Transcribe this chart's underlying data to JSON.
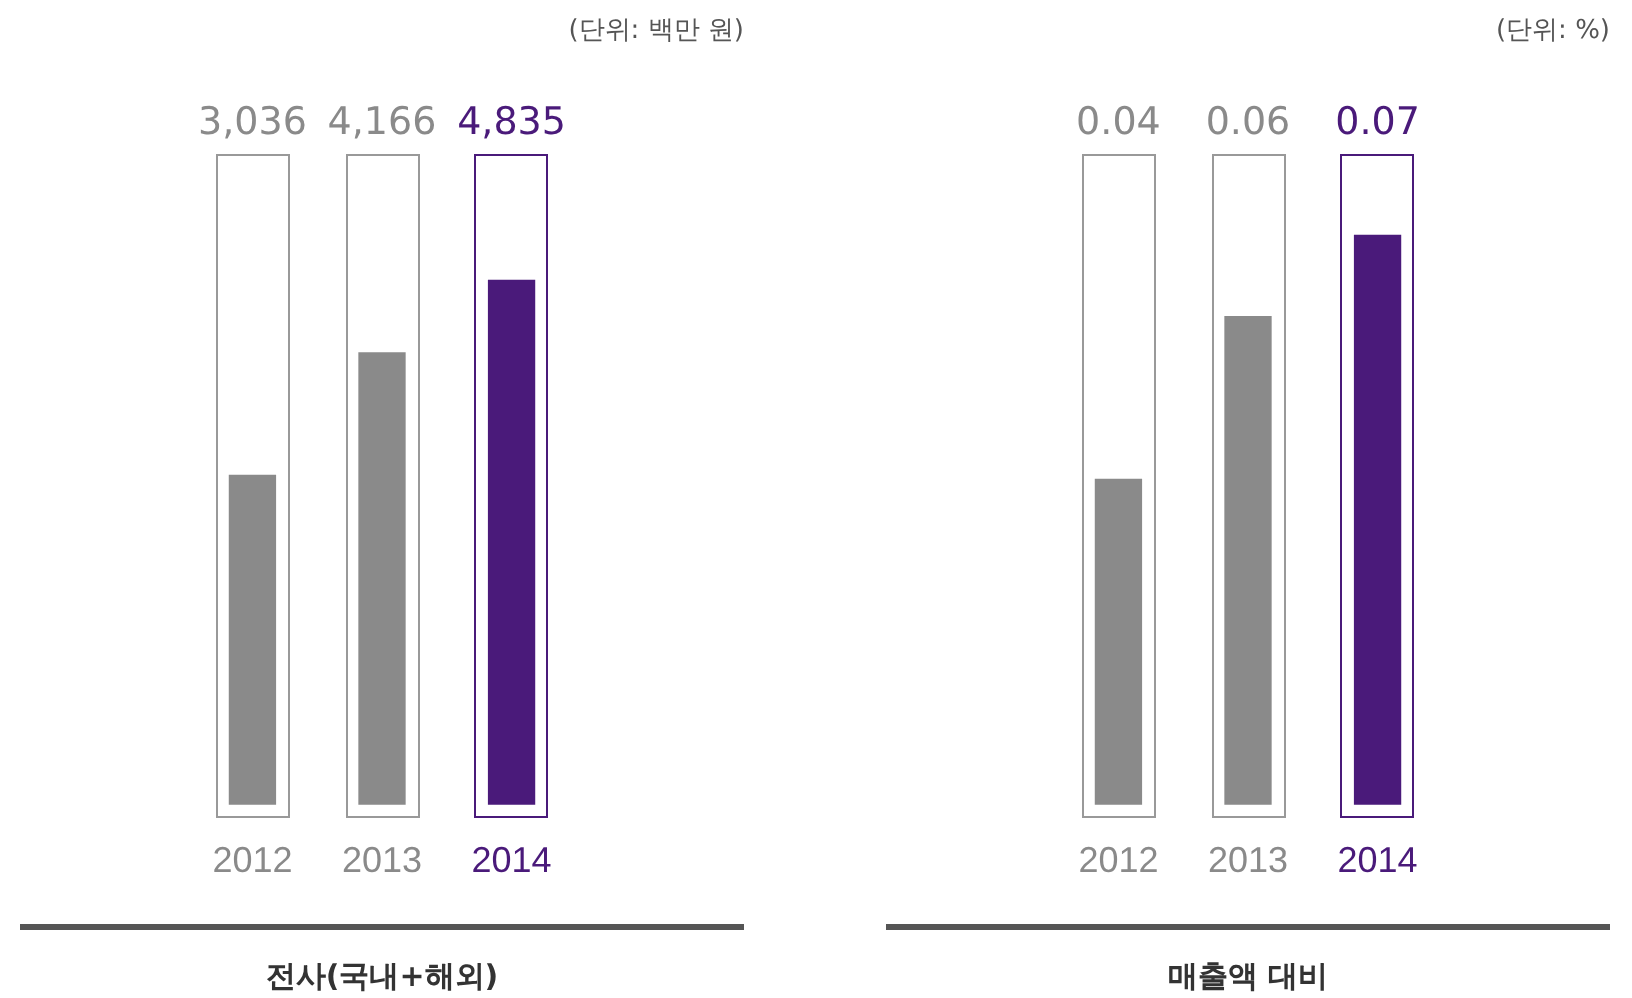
{
  "chart_data": [
    {
      "type": "bar",
      "categories": [
        "2012",
        "2013",
        "2014"
      ],
      "values": [
        3036,
        4166,
        4835
      ],
      "value_labels": [
        "3,036",
        "4,166",
        "4,835"
      ],
      "colors": [
        "#8a8a8a",
        "#8a8a8a",
        "#4a1a7a"
      ],
      "xlabel": "전사(국내+해외)",
      "annotations": [
        "(단위: 백만 원)"
      ],
      "grid": false,
      "legend": false,
      "tick_labels": "x"
    },
    {
      "type": "bar",
      "categories": [
        "2012",
        "2013",
        "2014"
      ],
      "values": [
        0.04,
        0.06,
        0.07
      ],
      "colors": [
        "#8a8a8a",
        "#8a8a8a",
        "#4a1a7a"
      ],
      "data_labels": true,
      "xlabel": "매출액 대비",
      "annotations": [
        "(단위: %)"
      ],
      "grid": false,
      "legend": false,
      "tick_labels": "x"
    }
  ]
}
